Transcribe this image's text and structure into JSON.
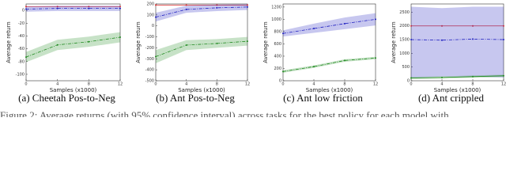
{
  "chart_data": [
    {
      "type": "line",
      "title": "(a) Cheetah Pos-to-Neg",
      "x_label": "Samples (x1000)",
      "y_label": "Average return",
      "x": [
        0,
        4,
        8,
        12
      ],
      "xlim": [
        0,
        12
      ],
      "xticks": [
        0,
        4,
        8,
        12
      ],
      "ylim": [
        -110,
        10
      ],
      "yticks": [
        -100,
        -80,
        -60,
        -40,
        -20,
        0
      ],
      "series": [
        {
          "color": "#e03030",
          "linestyle": "solid",
          "values": [
            6,
            6,
            6,
            6
          ]
        },
        {
          "color": "#2020c0",
          "linestyle": "dashdot",
          "values": [
            2,
            3,
            3,
            3
          ],
          "lower": [
            -2,
            -1,
            -1,
            -1
          ],
          "upper": [
            6,
            7,
            7,
            7
          ]
        },
        {
          "color": "#208a20",
          "linestyle": "dashdot",
          "values": [
            -73,
            -54,
            -49,
            -42
          ],
          "lower": [
            -81,
            -62,
            -57,
            -50
          ],
          "upper": [
            -65,
            -46,
            -41,
            -34
          ]
        }
      ]
    },
    {
      "type": "line",
      "title": "(b) Ant Pos-to-Neg",
      "x_label": "Samples (x1000)",
      "y_label": "Average return",
      "x": [
        0,
        4,
        8,
        12
      ],
      "xlim": [
        0,
        12
      ],
      "xticks": [
        0,
        4,
        8,
        12
      ],
      "ylim": [
        -500,
        200
      ],
      "yticks": [
        -500,
        -400,
        -300,
        -200,
        -100,
        0,
        100,
        200
      ],
      "series": [
        {
          "color": "#e03030",
          "linestyle": "solid",
          "values": [
            190,
            190,
            190,
            190
          ]
        },
        {
          "color": "#2020c0",
          "linestyle": "dashdot",
          "values": [
            80,
            150,
            165,
            172
          ],
          "lower": [
            40,
            120,
            135,
            145
          ],
          "upper": [
            120,
            185,
            195,
            198
          ]
        },
        {
          "color": "#208a20",
          "linestyle": "dashdot",
          "values": [
            -280,
            -175,
            -160,
            -140
          ],
          "lower": [
            -340,
            -220,
            -200,
            -180
          ],
          "upper": [
            -220,
            -130,
            -120,
            -100
          ]
        }
      ]
    },
    {
      "type": "line",
      "title": "(c) Ant low friction",
      "x_label": "Samples (x1000)",
      "y_label": "Average return",
      "x": [
        0,
        4,
        8,
        12
      ],
      "xlim": [
        0,
        12
      ],
      "xticks": [
        0,
        4,
        8,
        12
      ],
      "ylim": [
        0,
        1250
      ],
      "yticks": [
        0,
        200,
        400,
        600,
        800,
        1000,
        1200
      ],
      "series": [
        {
          "color": "#2020c0",
          "linestyle": "dashdot",
          "values": [
            770,
            850,
            930,
            1000
          ],
          "lower": [
            720,
            780,
            840,
            900
          ],
          "upper": [
            820,
            930,
            1030,
            1100
          ]
        },
        {
          "color": "#208a20",
          "linestyle": "dashdot",
          "values": [
            150,
            230,
            330,
            370
          ],
          "lower": [
            130,
            210,
            310,
            350
          ],
          "upper": [
            170,
            250,
            350,
            390
          ]
        }
      ]
    },
    {
      "type": "line",
      "title": "(d) Ant crippled",
      "x_label": "Samples (x1000)",
      "y_label": "Average return",
      "x": [
        0,
        4,
        8,
        12
      ],
      "xlim": [
        0,
        12
      ],
      "xticks": [
        0,
        4,
        8,
        12
      ],
      "ylim": [
        0,
        2800
      ],
      "yticks": [
        0,
        500,
        1000,
        1500,
        2000,
        2500
      ],
      "series": [
        {
          "color": "#e03030",
          "linestyle": "solid",
          "values": [
            2000,
            2000,
            2000,
            2000
          ]
        },
        {
          "color": "#2020c0",
          "linestyle": "dashdot",
          "values": [
            1500,
            1480,
            1520,
            1500
          ],
          "lower": [
            100,
            150,
            150,
            120
          ],
          "upper": [
            2700,
            2650,
            2700,
            2700
          ]
        },
        {
          "color": "#208a20",
          "linestyle": "solid",
          "values": [
            100,
            120,
            150,
            180
          ],
          "lower": [
            60,
            80,
            110,
            140
          ],
          "upper": [
            140,
            160,
            190,
            220
          ]
        }
      ]
    }
  ],
  "figure_caption": "Figure 2: Average returns (with 95% confidence interval) across tasks for the best policy for each model with"
}
